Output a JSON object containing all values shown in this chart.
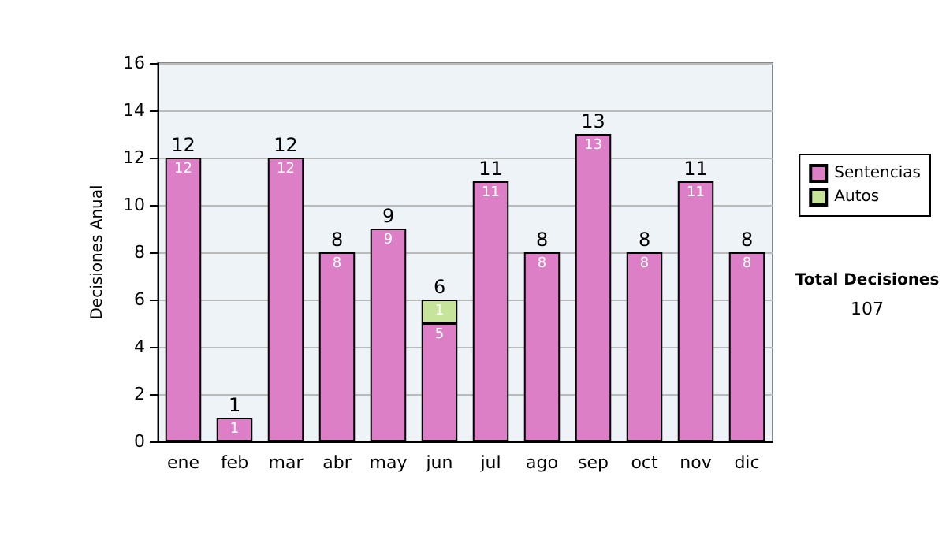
{
  "chart_data": {
    "type": "bar",
    "stacked": true,
    "ylabel": "Decisiones Anual",
    "categories": [
      "ene",
      "feb",
      "mar",
      "abr",
      "may",
      "jun",
      "jul",
      "ago",
      "sep",
      "oct",
      "nov",
      "dic"
    ],
    "series": [
      {
        "name": "Sentencias",
        "color": "#dd7fc6",
        "values": [
          12,
          1,
          12,
          8,
          9,
          5,
          11,
          8,
          13,
          8,
          11,
          8
        ],
        "value_labels": [
          "12",
          "1",
          "12",
          "8",
          "9",
          "5",
          "11",
          "8",
          "13",
          "8",
          "11",
          "8"
        ]
      },
      {
        "name": "Autos",
        "color": "#c6e59a",
        "values": [
          0,
          0,
          0,
          0,
          0,
          1,
          0,
          0,
          0,
          0,
          0,
          0
        ],
        "value_labels": [
          null,
          null,
          null,
          null,
          null,
          "1",
          null,
          null,
          null,
          null,
          null,
          null
        ]
      }
    ],
    "totals": [
      "12",
      "1",
      "12",
      "8",
      "9",
      "6",
      "11",
      "8",
      "13",
      "8",
      "11",
      "8"
    ],
    "ylim": [
      0,
      16
    ],
    "yticks": [
      0,
      2,
      4,
      6,
      8,
      10,
      12,
      14,
      16
    ],
    "grid": "y",
    "legend": "right",
    "annotations": [
      "Total Decisiones",
      "107"
    ]
  }
}
